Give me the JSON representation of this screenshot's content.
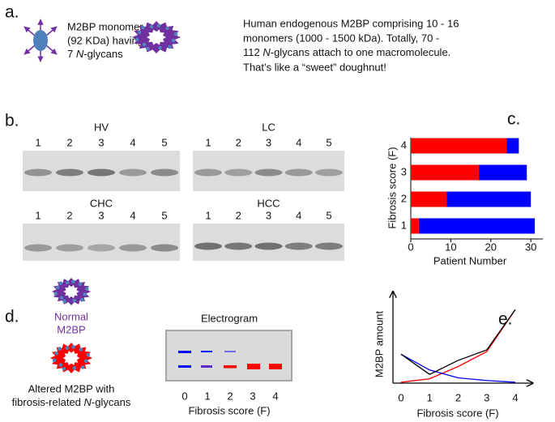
{
  "panel_labels": [
    "a.",
    "b.",
    "c.",
    "d.",
    "e."
  ],
  "panel_a": {
    "monomer_lines": [
      "M2BP monomer",
      "(92 KDa) having"
    ],
    "monomer_glycans": {
      "pre": "7 ",
      "italic": "N",
      "post": "-glycans"
    },
    "description_lines": [
      "Human endogenous M2BP comprising 10 - 16",
      "monomers (1000 - 1500 kDa).  Totally, 70 -"
    ],
    "description_glycans": {
      "pre": "112 ",
      "italic": "N",
      "post": "-glycans attach to one macromolecule."
    },
    "description_last": "That’s like a “sweet” doughnut!"
  },
  "panel_b": {
    "gels": [
      {
        "title": "HV",
        "lanes": [
          "1",
          "2",
          "3",
          "4",
          "5"
        ]
      },
      {
        "title": "LC",
        "lanes": [
          "1",
          "2",
          "3",
          "4",
          "5"
        ]
      },
      {
        "title": "CHC",
        "lanes": [
          "1",
          "2",
          "3",
          "4",
          "5"
        ]
      },
      {
        "title": "HCC",
        "lanes": [
          "1",
          "2",
          "3",
          "4",
          "5"
        ]
      }
    ]
  },
  "chart_data": [
    {
      "type": "bar",
      "orientation": "horizontal",
      "stacked": true,
      "categories": [
        "1",
        "2",
        "3",
        "4"
      ],
      "series": [
        {
          "color": "#ff0000",
          "values": [
            2,
            9,
            17,
            24
          ]
        },
        {
          "color": "#0000ff",
          "values": [
            29,
            21,
            12,
            3
          ]
        }
      ],
      "xlim": [
        0,
        33
      ],
      "xticks": [
        0,
        10,
        20,
        30
      ],
      "x_label": "Patient Number",
      "y_label": "Fibrosis score (F)"
    },
    {
      "type": "line",
      "x": [
        0,
        1,
        2,
        3,
        4
      ],
      "series": [
        {
          "color": "#ff0000",
          "values": [
            1,
            5,
            19,
            36,
            84
          ]
        },
        {
          "color": "#0000ff",
          "values": [
            33,
            15,
            6,
            3,
            1
          ]
        },
        {
          "color": "#000000",
          "values": [
            33,
            10,
            26,
            38,
            84
          ]
        }
      ],
      "xlim": [
        0,
        4.5
      ],
      "xticks": [
        0,
        1,
        2,
        3,
        4
      ],
      "ylim": [
        0,
        100
      ],
      "x_label": "Fibrosis score (F)",
      "y_label": "M2BP amount"
    }
  ],
  "panel_d": {
    "normal_lines": [
      "Normal",
      "M2BP"
    ],
    "altered_line": "Altered M2BP with",
    "altered_glycans": {
      "pre": "fibrosis-related ",
      "italic": "N",
      "post": "-glycans"
    },
    "electrogram_title": "Electrogram",
    "lanes": [
      "0",
      "1",
      "2",
      "3",
      "4"
    ],
    "x_label": "Fibrosis score (F)"
  }
}
